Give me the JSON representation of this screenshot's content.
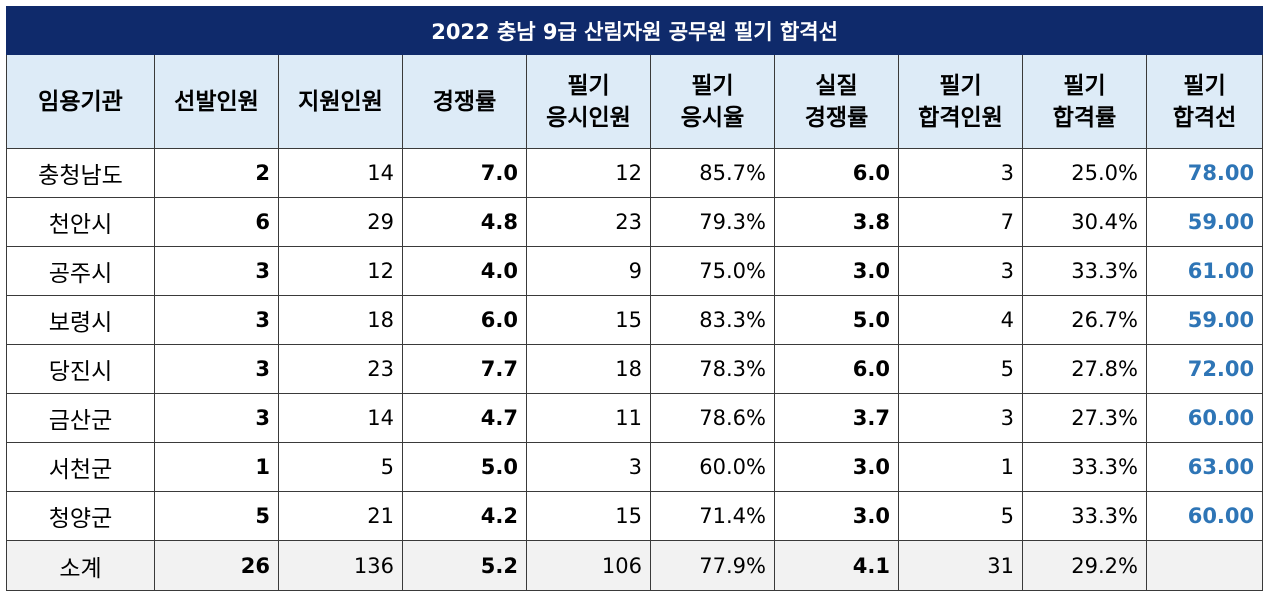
{
  "title": "2022 충남 9급 산림자원  공무원 필기 합격선",
  "headers": [
    [
      "임용기관"
    ],
    [
      "선발인원"
    ],
    [
      "지원인원"
    ],
    [
      "경쟁률"
    ],
    [
      "필기",
      "응시인원"
    ],
    [
      "필기",
      "응시율"
    ],
    [
      "실질",
      "경쟁률"
    ],
    [
      "필기",
      "합격인원"
    ],
    [
      "필기",
      "합격률"
    ],
    [
      "필기",
      "합격선"
    ]
  ],
  "rows": [
    [
      "충청남도",
      "2",
      "14",
      "7.0",
      "12",
      "85.7%",
      "6.0",
      "3",
      "25.0%",
      "78.00"
    ],
    [
      "천안시",
      "6",
      "29",
      "4.8",
      "23",
      "79.3%",
      "3.8",
      "7",
      "30.4%",
      "59.00"
    ],
    [
      "공주시",
      "3",
      "12",
      "4.0",
      "9",
      "75.0%",
      "3.0",
      "3",
      "33.3%",
      "61.00"
    ],
    [
      "보령시",
      "3",
      "18",
      "6.0",
      "15",
      "83.3%",
      "5.0",
      "4",
      "26.7%",
      "59.00"
    ],
    [
      "당진시",
      "3",
      "23",
      "7.7",
      "18",
      "78.3%",
      "6.0",
      "5",
      "27.8%",
      "72.00"
    ],
    [
      "금산군",
      "3",
      "14",
      "4.7",
      "11",
      "78.6%",
      "3.7",
      "3",
      "27.3%",
      "60.00"
    ],
    [
      "서천군",
      "1",
      "5",
      "5.0",
      "3",
      "60.0%",
      "3.0",
      "1",
      "33.3%",
      "63.00"
    ],
    [
      "청양군",
      "5",
      "21",
      "4.2",
      "15",
      "71.4%",
      "3.0",
      "5",
      "33.3%",
      "60.00"
    ]
  ],
  "total": [
    "소계",
    "26",
    "136",
    "5.2",
    "106",
    "77.9%",
    "4.1",
    "31",
    "29.2%",
    ""
  ],
  "colors": {
    "title_bg": "#0f2a6b",
    "header_bg": "#ddebf7",
    "pass_mark_text": "#2e75b6",
    "total_bg": "#f2f2f2"
  }
}
